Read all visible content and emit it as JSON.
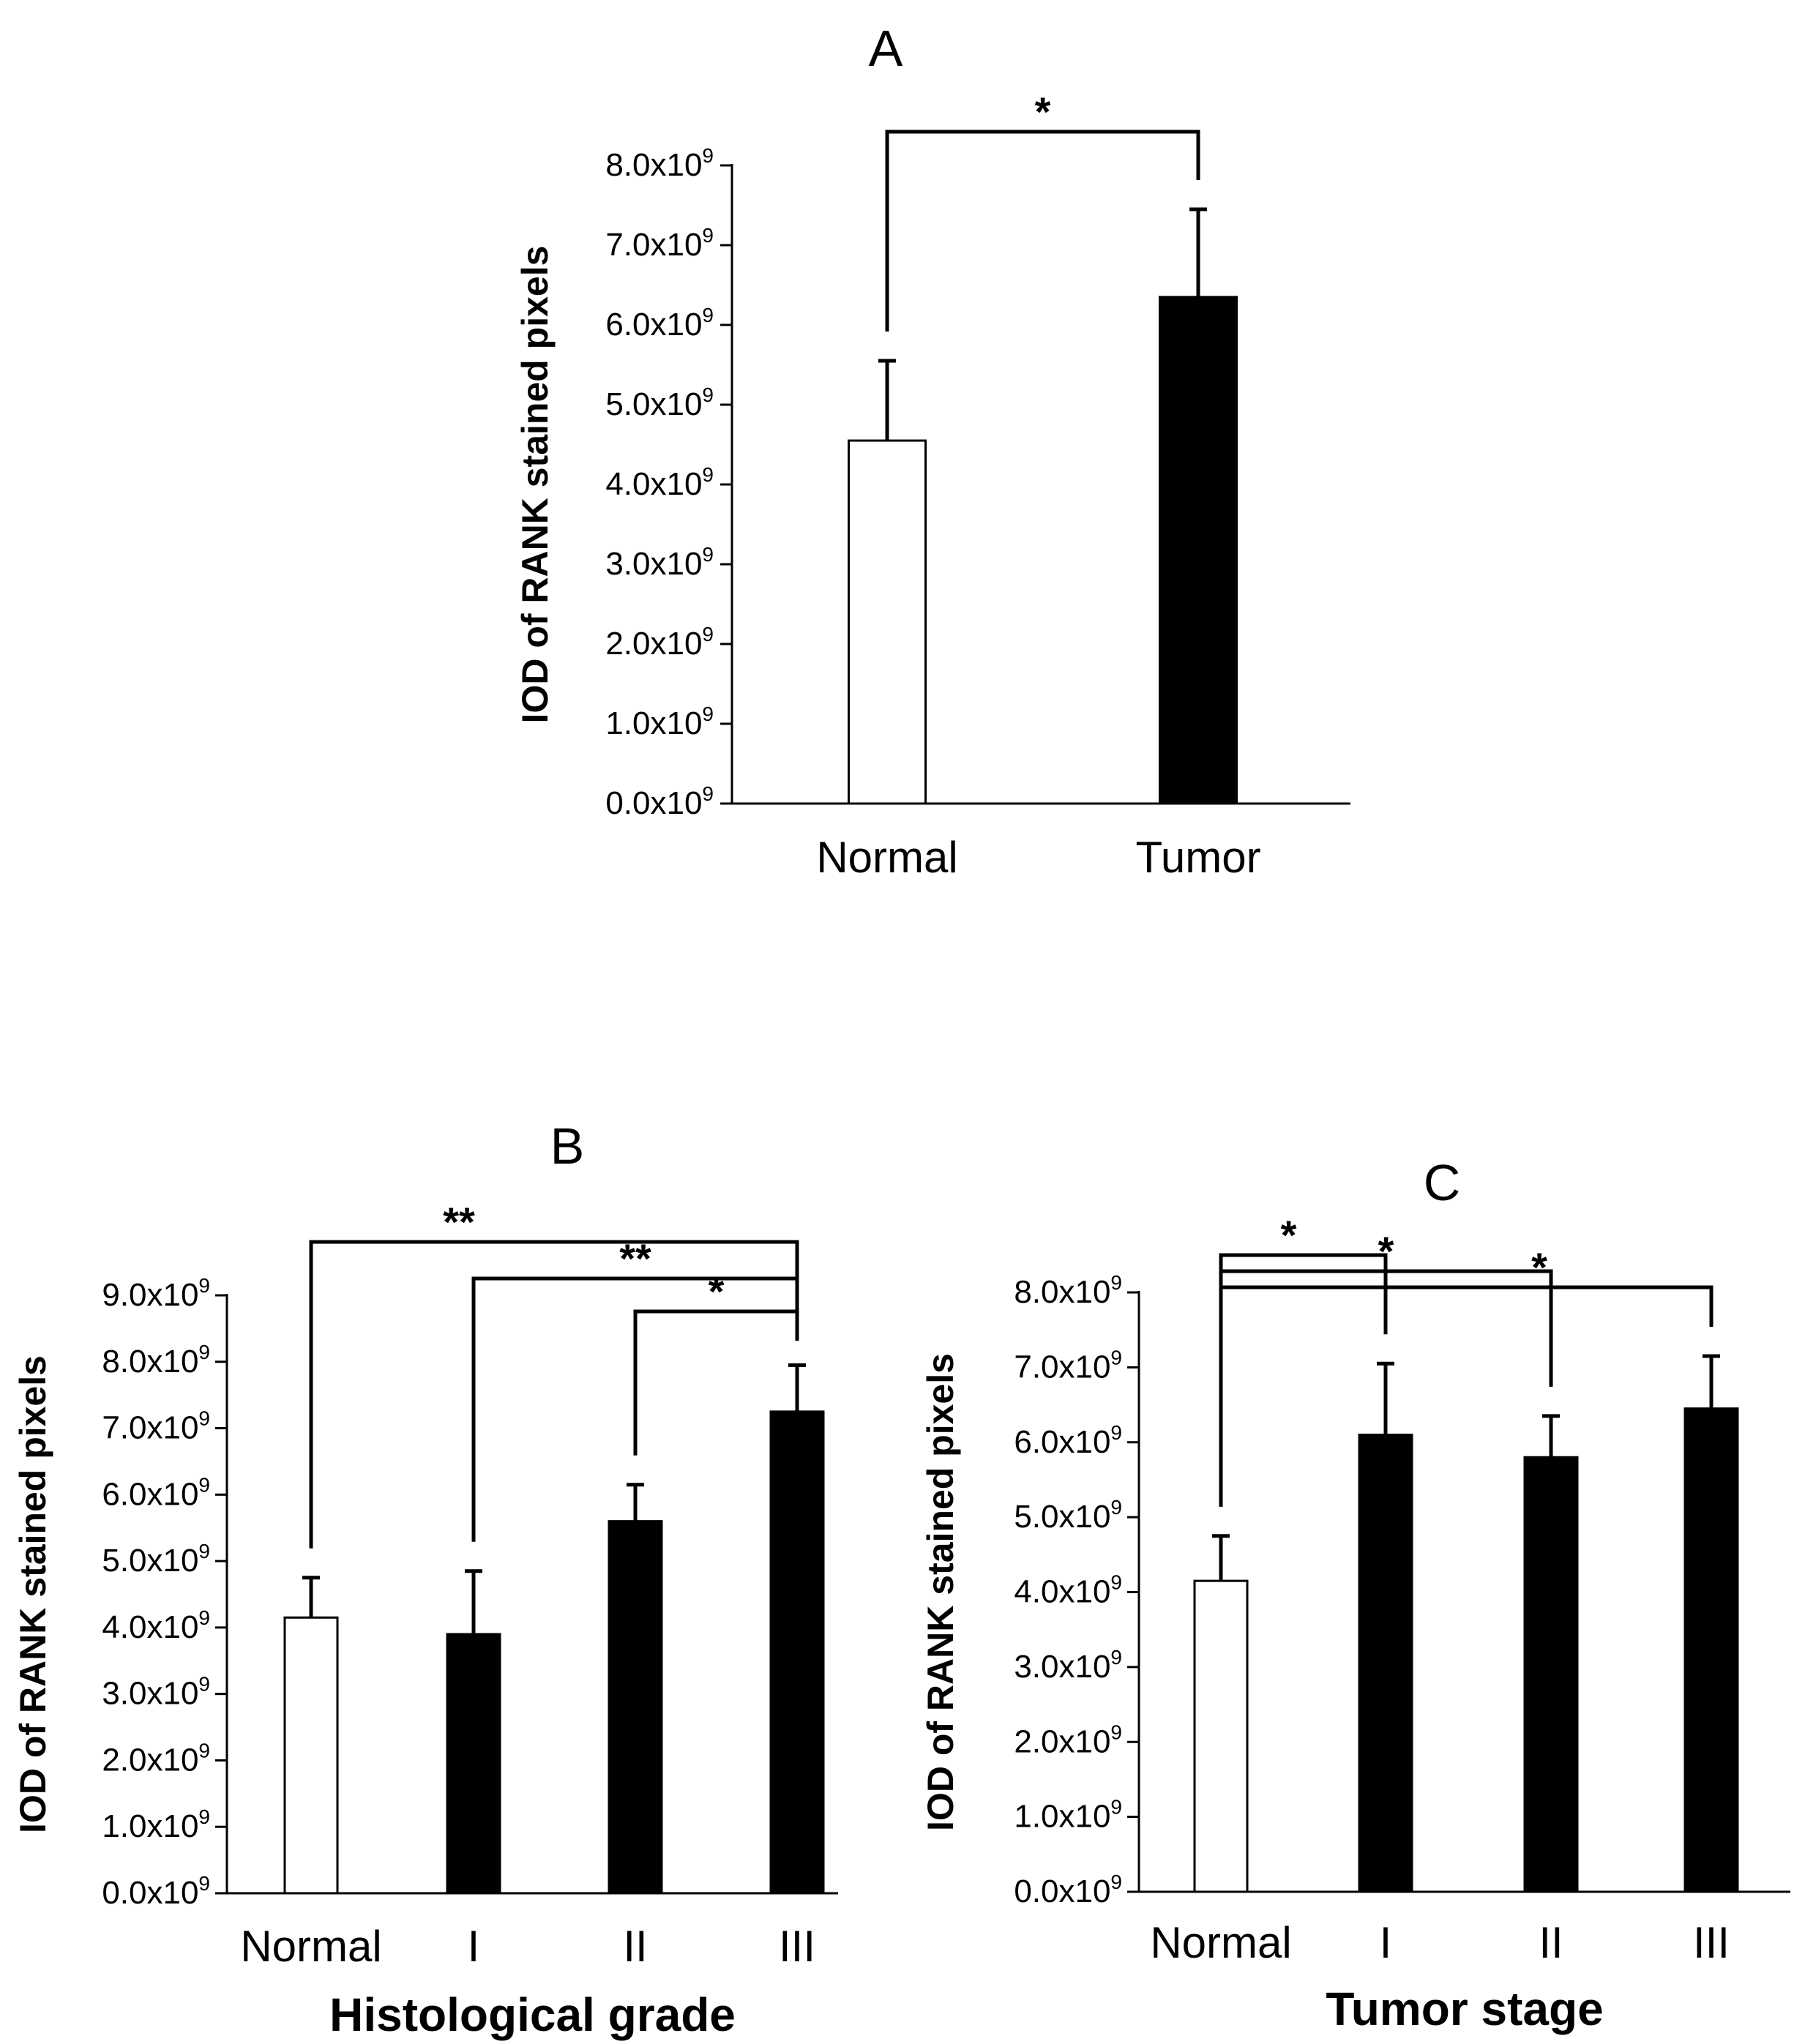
{
  "chart_data": [
    {
      "type": "bar",
      "title": "A",
      "xlabel": "",
      "ylabel": "IOD of RANK stained pixels",
      "ylim": [
        0,
        8.0
      ],
      "y_unit_suffix": "x10",
      "y_exponent": "9",
      "yticks": [
        0.0,
        1.0,
        2.0,
        3.0,
        4.0,
        5.0,
        6.0,
        7.0,
        8.0
      ],
      "categories": [
        "Normal",
        "Tumor"
      ],
      "values": [
        4.55,
        6.35
      ],
      "errors": [
        1.0,
        1.1
      ],
      "bar_fills": [
        "#ffffff",
        "#000000"
      ],
      "significance": [
        {
          "from": 0,
          "to": 1,
          "label": "*"
        }
      ]
    },
    {
      "type": "bar",
      "title": "B",
      "xlabel": "Histological grade",
      "ylabel": "IOD of RANK stained pixels",
      "ylim": [
        0,
        9.0
      ],
      "y_unit_suffix": "x10",
      "y_exponent": "9",
      "yticks": [
        0.0,
        1.0,
        2.0,
        3.0,
        4.0,
        5.0,
        6.0,
        7.0,
        8.0,
        9.0
      ],
      "categories": [
        "Normal",
        "I",
        "II",
        "III"
      ],
      "values": [
        4.15,
        3.9,
        5.6,
        7.25
      ],
      "errors": [
        0.6,
        0.95,
        0.55,
        0.7
      ],
      "bar_fills": [
        "#ffffff",
        "#000000",
        "#000000",
        "#000000"
      ],
      "significance": [
        {
          "from": 0,
          "to": 3,
          "label": "**"
        },
        {
          "from": 1,
          "to": 3,
          "label": "**"
        },
        {
          "from": 2,
          "to": 3,
          "label": "*"
        }
      ]
    },
    {
      "type": "bar",
      "title": "C",
      "xlabel": "Tumor stage",
      "ylabel": "IOD of RANK stained pixels",
      "ylim": [
        0,
        8.0
      ],
      "y_unit_suffix": "x10",
      "y_exponent": "9",
      "yticks": [
        0.0,
        1.0,
        2.0,
        3.0,
        4.0,
        5.0,
        6.0,
        7.0,
        8.0
      ],
      "categories": [
        "Normal",
        "I",
        "II",
        "III"
      ],
      "values": [
        4.15,
        6.1,
        5.8,
        6.45
      ],
      "errors": [
        0.6,
        0.95,
        0.55,
        0.7
      ],
      "bar_fills": [
        "#ffffff",
        "#000000",
        "#000000",
        "#000000"
      ],
      "significance": [
        {
          "from": 0,
          "to": 1,
          "label": "*"
        },
        {
          "from": 0,
          "to": 2,
          "label": "*"
        },
        {
          "from": 0,
          "to": 3,
          "label": "*"
        }
      ]
    }
  ]
}
